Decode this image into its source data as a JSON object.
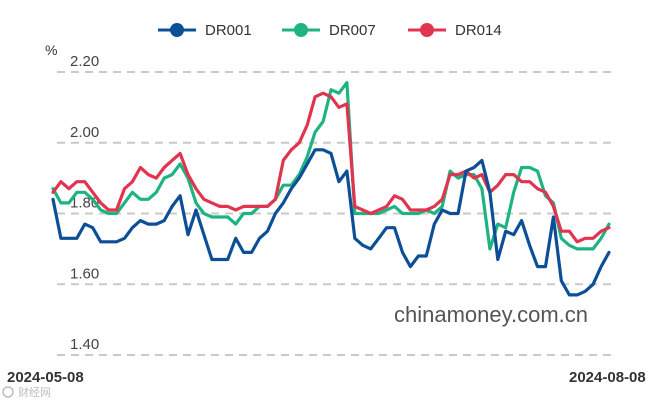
{
  "chart_data": {
    "type": "line",
    "unit": "%",
    "ylim": [
      1.4,
      2.2
    ],
    "yticks": [
      "2.20",
      "2.00",
      "1.80",
      "1.60",
      "1.40"
    ],
    "x_start_label": "2024-05-08",
    "x_end_label": "2024-08-08",
    "grid": true,
    "legend_position": "top",
    "watermark": "chinamoney.com.cn",
    "series": [
      {
        "name": "DR001",
        "color": "#0d4f96",
        "values": [
          1.84,
          1.73,
          1.73,
          1.73,
          1.77,
          1.76,
          1.72,
          1.72,
          1.72,
          1.73,
          1.76,
          1.78,
          1.77,
          1.77,
          1.78,
          1.82,
          1.85,
          1.74,
          1.81,
          1.74,
          1.67,
          1.67,
          1.67,
          1.73,
          1.69,
          1.69,
          1.73,
          1.75,
          1.8,
          1.83,
          1.87,
          1.9,
          1.94,
          1.98,
          1.98,
          1.97,
          1.89,
          1.92,
          1.73,
          1.71,
          1.7,
          1.73,
          1.76,
          1.76,
          1.69,
          1.65,
          1.68,
          1.68,
          1.77,
          1.81,
          1.8,
          1.8,
          1.92,
          1.93,
          1.95,
          1.86,
          1.67,
          1.75,
          1.74,
          1.78,
          1.71,
          1.65,
          1.65,
          1.79,
          1.61,
          1.57,
          1.57,
          1.58,
          1.6,
          1.65,
          1.69
        ]
      },
      {
        "name": "DR007",
        "color": "#1fb381",
        "values": [
          1.87,
          1.83,
          1.83,
          1.86,
          1.86,
          1.84,
          1.81,
          1.8,
          1.8,
          1.83,
          1.86,
          1.84,
          1.84,
          1.86,
          1.9,
          1.91,
          1.94,
          1.9,
          1.83,
          1.8,
          1.79,
          1.79,
          1.79,
          1.77,
          1.8,
          1.8,
          1.82,
          1.82,
          1.84,
          1.88,
          1.88,
          1.91,
          1.96,
          2.03,
          2.06,
          2.15,
          2.14,
          2.17,
          1.8,
          1.8,
          1.8,
          1.8,
          1.81,
          1.82,
          1.8,
          1.8,
          1.8,
          1.81,
          1.8,
          1.82,
          1.92,
          1.9,
          1.91,
          1.91,
          1.87,
          1.7,
          1.77,
          1.76,
          1.86,
          1.93,
          1.93,
          1.92,
          1.85,
          1.83,
          1.73,
          1.71,
          1.7,
          1.7,
          1.7,
          1.73,
          1.77
        ]
      },
      {
        "name": "DR014",
        "color": "#e0344f",
        "values": [
          1.86,
          1.89,
          1.87,
          1.89,
          1.89,
          1.86,
          1.83,
          1.81,
          1.81,
          1.87,
          1.89,
          1.93,
          1.91,
          1.9,
          1.93,
          1.95,
          1.97,
          1.91,
          1.87,
          1.84,
          1.83,
          1.82,
          1.82,
          1.81,
          1.82,
          1.82,
          1.82,
          1.82,
          1.84,
          1.95,
          1.98,
          2.0,
          2.05,
          2.13,
          2.14,
          2.13,
          2.1,
          2.11,
          1.82,
          1.81,
          1.8,
          1.81,
          1.82,
          1.85,
          1.84,
          1.81,
          1.81,
          1.81,
          1.82,
          1.84,
          1.91,
          1.91,
          1.92,
          1.9,
          1.91,
          1.86,
          1.88,
          1.91,
          1.91,
          1.89,
          1.89,
          1.87,
          1.86,
          1.82,
          1.75,
          1.75,
          1.72,
          1.73,
          1.73,
          1.75,
          1.76
        ]
      }
    ]
  },
  "footer": {
    "logo_text": "财经网"
  }
}
